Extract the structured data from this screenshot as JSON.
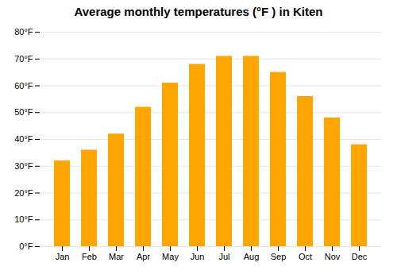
{
  "chart_data": {
    "type": "bar",
    "title": "Average monthly temperatures (°F ) in Kiten",
    "categories": [
      "Jan",
      "Feb",
      "Mar",
      "Apr",
      "May",
      "Jun",
      "Jul",
      "Aug",
      "Sep",
      "Oct",
      "Nov",
      "Dec"
    ],
    "values": [
      32,
      36,
      42,
      52,
      61,
      68,
      71,
      71,
      65,
      56,
      48,
      38
    ],
    "color": "#FFA500",
    "ylim": [
      0,
      80
    ],
    "yticks": [
      {
        "value": 0,
        "label": "0°F"
      },
      {
        "value": 10,
        "label": "10°F"
      },
      {
        "value": 20,
        "label": "20°F"
      },
      {
        "value": 30,
        "label": "30°F"
      },
      {
        "value": 40,
        "label": "40°F"
      },
      {
        "value": 50,
        "label": "50°F"
      },
      {
        "value": 60,
        "label": "60°F"
      },
      {
        "value": 70,
        "label": "70°F"
      },
      {
        "value": 80,
        "label": "80°F"
      }
    ],
    "grid": true
  }
}
